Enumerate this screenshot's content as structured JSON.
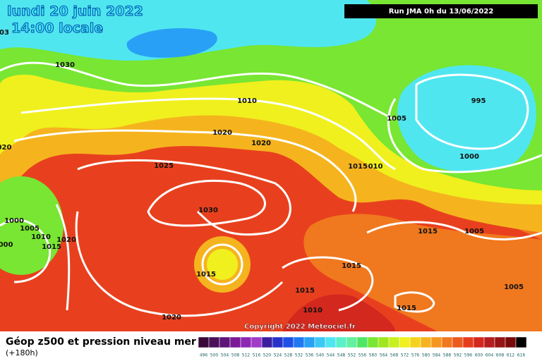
{
  "header": {
    "date": "lundi 20 juin 2022",
    "time": "14:00 locale",
    "run": "Run JMA 0h du 13/06/2022"
  },
  "isobar_labels": [
    "1030",
    "1010",
    "1020",
    "1020",
    "1025",
    "1030",
    "1015",
    "1020",
    "1015",
    "1015",
    "1010",
    "1015",
    "1015",
    "010",
    "1005",
    "995",
    "1000",
    "1015",
    "1005",
    "1005",
    "1000",
    "1005",
    "1010",
    "1015",
    "1020",
    "000",
    "020",
    "03"
  ],
  "copyright": "Copyright 2022 Meteociel.fr",
  "footer": {
    "title": "Géop z500 et pression niveau mer",
    "lead": "(+180h)"
  },
  "scale": {
    "labels": [
      496,
      500,
      504,
      508,
      512,
      516,
      520,
      524,
      528,
      532,
      536,
      540,
      544,
      548,
      552,
      556,
      560,
      564,
      568,
      572,
      576,
      580,
      584,
      588,
      592,
      596,
      600,
      604,
      608,
      612,
      616
    ],
    "colors": [
      "#3a0a3a",
      "#4b0f5a",
      "#5e1478",
      "#7a1a96",
      "#8c28b4",
      "#a03cc8",
      "#3c1ea0",
      "#2832c8",
      "#1e50e6",
      "#1e78f0",
      "#28a0f5",
      "#3cc8f5",
      "#50e6f0",
      "#5af0c8",
      "#64f0a0",
      "#50e664",
      "#78e632",
      "#a0e61e",
      "#c8f01e",
      "#f0f01e",
      "#f5d21e",
      "#f5b41e",
      "#f5961e",
      "#f0781e",
      "#eb5a1e",
      "#e63c1e",
      "#d2281e",
      "#b41e1e",
      "#961414",
      "#780a0a",
      "#000000"
    ]
  }
}
